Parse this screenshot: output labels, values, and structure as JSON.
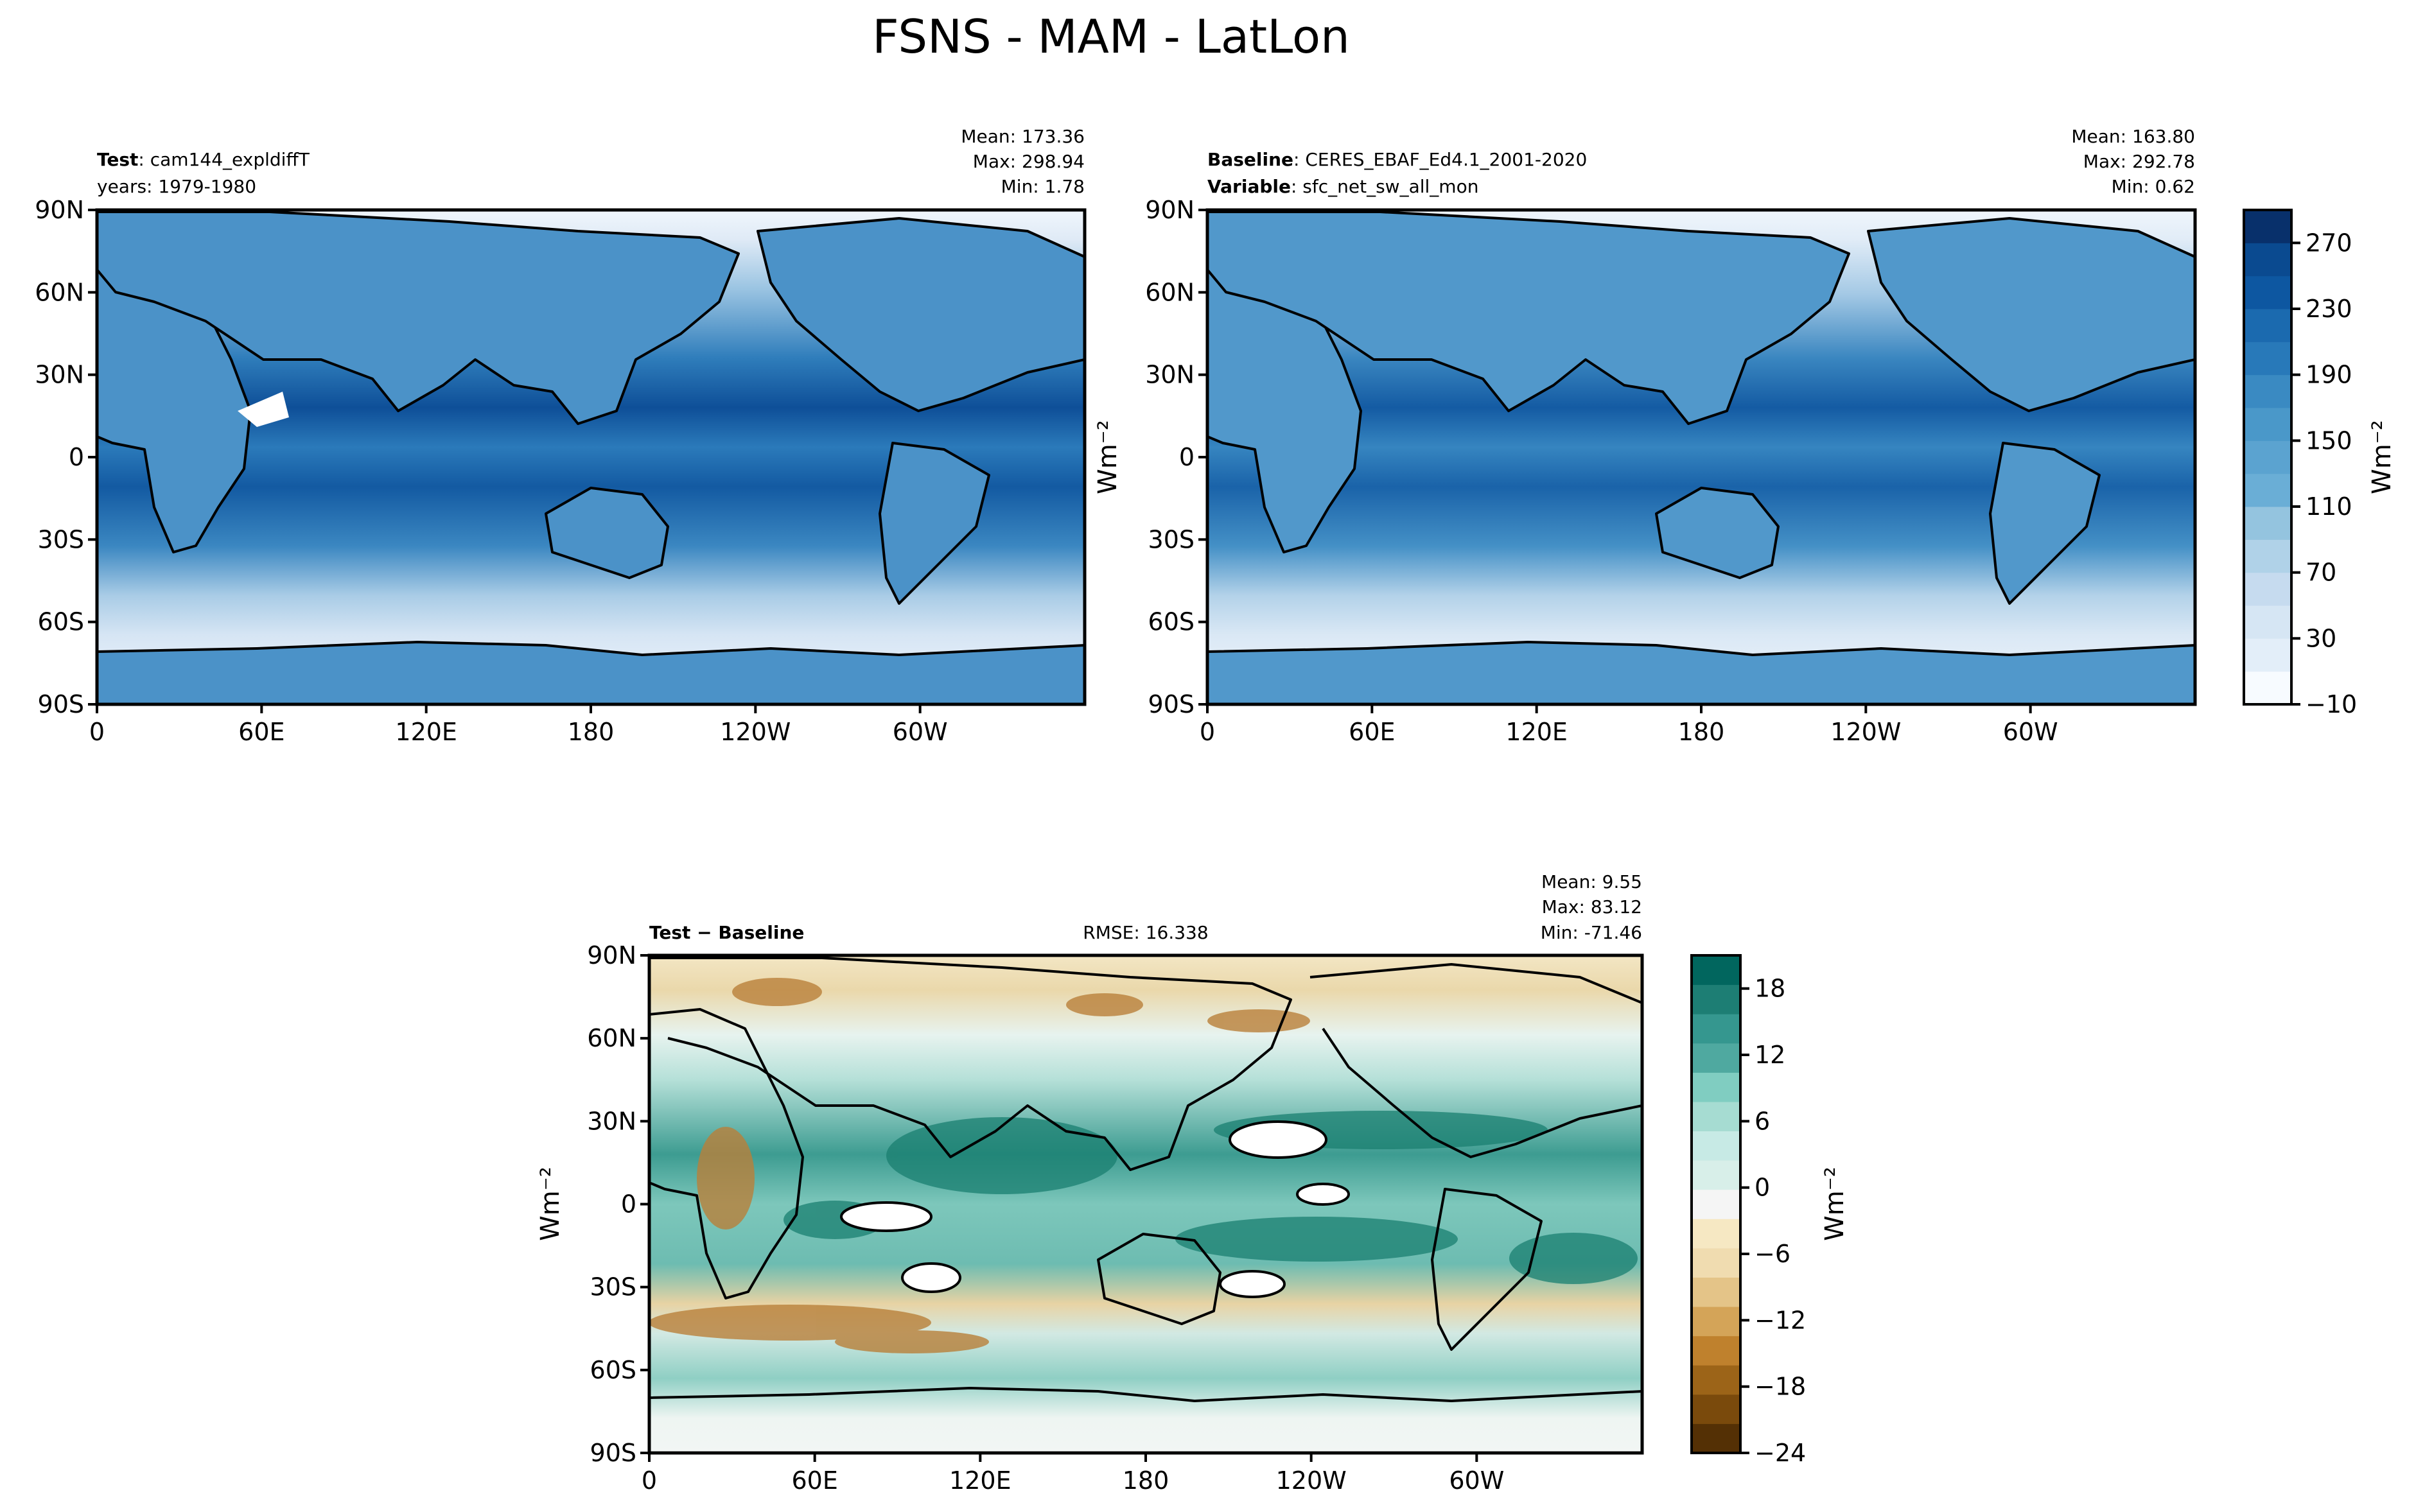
{
  "figure": {
    "title": "FSNS - MAM - LatLon"
  },
  "chart_data": [
    {
      "type": "heatmap",
      "panel": "test",
      "header_left": [
        {
          "bold": "Test",
          "text": ": cam144_expldiffT"
        },
        {
          "bold": "",
          "text": "years: 1979-1980"
        }
      ],
      "stats": [
        "Mean: 173.36",
        "Max: 298.94",
        "Min:  1.78"
      ],
      "x_ticks": [
        "0",
        "60E",
        "120E",
        "180",
        "120W",
        "60W"
      ],
      "y_ticks": [
        "90N",
        "60N",
        "30N",
        "0",
        "30S",
        "60S",
        "90S"
      ],
      "colormap": "Blues",
      "value_range": [
        1.78,
        298.94
      ],
      "mean": 173.36
    },
    {
      "type": "heatmap",
      "panel": "baseline",
      "header_left": [
        {
          "bold": "Baseline",
          "text": ": CERES_EBAF_Ed4.1_2001-2020"
        },
        {
          "bold": "Variable",
          "text": ": sfc_net_sw_all_mon"
        }
      ],
      "stats": [
        "Mean: 163.80",
        "Max: 292.78",
        "Min:  0.62"
      ],
      "x_ticks": [
        "0",
        "60E",
        "120E",
        "180",
        "120W",
        "60W"
      ],
      "y_ticks": [
        "90N",
        "60N",
        "30N",
        "0",
        "30S",
        "60S",
        "90S"
      ],
      "colormap": "Blues",
      "value_range": [
        0.62,
        292.78
      ],
      "mean": 163.8,
      "colorbar": {
        "ticks": [
          "270",
          "230",
          "190",
          "150",
          "110",
          "70",
          "30",
          "−10"
        ],
        "levels": [
          -10,
          10,
          30,
          50,
          70,
          90,
          110,
          130,
          150,
          170,
          190,
          210,
          230,
          250,
          270,
          290
        ],
        "label": "Wm⁻²",
        "colors": [
          "#f7fbff",
          "#e3eef9",
          "#d6e6f4",
          "#c6dbef",
          "#b0d2e8",
          "#94c4df",
          "#6aaed6",
          "#5ba3d0",
          "#4a98c9",
          "#3a8ac2",
          "#2879b9",
          "#1b6aaf",
          "#0d57a1",
          "#0a4a90",
          "#08306b"
        ]
      }
    },
    {
      "type": "heatmap",
      "panel": "difference",
      "header_left": [
        {
          "bold": "Test − Baseline",
          "text": ""
        }
      ],
      "header_center": "RMSE: 16.338",
      "stats": [
        "Mean:  9.55",
        "Max: 83.12",
        "Min: -71.46"
      ],
      "x_ticks": [
        "0",
        "60E",
        "120E",
        "180",
        "120W",
        "60W"
      ],
      "y_ticks": [
        "90N",
        "60N",
        "30N",
        "0",
        "30S",
        "60S",
        "90S"
      ],
      "y_label": "Wm⁻²",
      "colormap": "BrBG",
      "value_range": [
        -71.46,
        83.12
      ],
      "mean": 9.55,
      "rmse": 16.338,
      "colorbar": {
        "ticks": [
          "18",
          "12",
          "6",
          "0",
          "−6",
          "−12",
          "−18",
          "−24"
        ],
        "levels": [
          -24,
          -21,
          -18,
          -15,
          -12,
          -9,
          -6,
          -3,
          -1,
          1,
          3,
          6,
          9,
          12,
          15,
          18,
          21
        ],
        "label": "Wm⁻²",
        "colors": [
          "#543005",
          "#7a4a0c",
          "#9c6418",
          "#bf812d",
          "#d4a458",
          "#e4c488",
          "#f0dcb0",
          "#f6e8c3",
          "#f5f5f5",
          "#d8efe9",
          "#c7eae5",
          "#a6dcd2",
          "#80cdc1",
          "#4fa9a0",
          "#35978f",
          "#1d7e74",
          "#01665e"
        ]
      }
    }
  ],
  "colors": {
    "ocean_high": "#0c4a94",
    "land": "#3f86c2",
    "polar": "#eaf2fa",
    "diff_positive": "#0f7566",
    "diff_negative": "#a8742c"
  }
}
